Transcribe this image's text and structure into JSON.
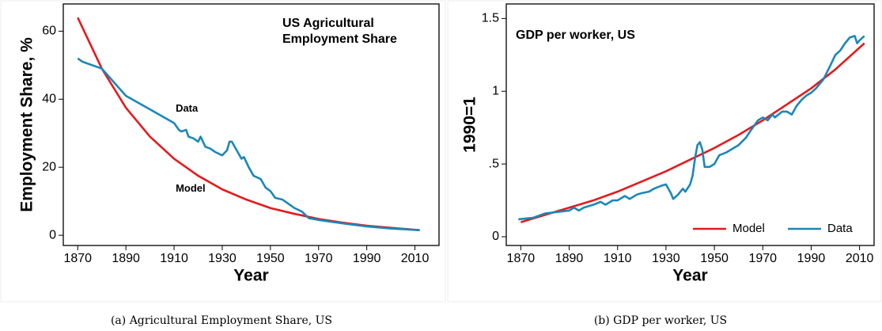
{
  "chart_data": [
    {
      "type": "line",
      "title": [
        "US Agricultural",
        "Employment Share"
      ],
      "caption": "(a) Agricultural Employment Share, US",
      "x_label": "Year",
      "y_label": "Employment Share, %",
      "xlim": [
        1864,
        2020
      ],
      "ylim": [
        -3,
        68
      ],
      "xticks": [
        1870,
        1890,
        1910,
        1930,
        1950,
        1970,
        1990,
        2010
      ],
      "yticks": [
        0,
        20,
        40,
        60
      ],
      "legend": "inline",
      "series": [
        {
          "name": "Model",
          "color": "#e41a1c",
          "x": [
            1870,
            1880,
            1890,
            1900,
            1910,
            1920,
            1930,
            1940,
            1950,
            1960,
            1970,
            1980,
            1990,
            2000,
            2012
          ],
          "values": [
            64,
            49,
            37.5,
            29,
            22.5,
            17.5,
            13.5,
            10.5,
            8,
            6.3,
            4.8,
            3.7,
            2.8,
            2.2,
            1.5
          ]
        },
        {
          "name": "Data",
          "color": "#1b87b8",
          "x": [
            1870,
            1872,
            1880,
            1890,
            1900,
            1910,
            1912,
            1913,
            1915,
            1916,
            1918,
            1920,
            1921,
            1923,
            1925,
            1927,
            1930,
            1932,
            1933,
            1934,
            1936,
            1938,
            1939,
            1941,
            1943,
            1946,
            1948,
            1950,
            1952,
            1955,
            1957,
            1960,
            1963,
            1966,
            1970,
            1975,
            1980,
            1990,
            2000,
            2012
          ],
          "values": [
            52,
            51,
            49,
            41,
            37,
            33,
            31,
            30.5,
            31,
            29,
            28.5,
            27.5,
            29,
            26,
            25.5,
            24.5,
            23.5,
            25,
            27.5,
            27.5,
            25,
            22.5,
            23,
            20,
            17.5,
            16.5,
            14,
            13,
            11,
            10.5,
            9.5,
            8,
            7,
            5,
            4.5,
            4,
            3.5,
            2.6,
            2,
            1.5
          ]
        }
      ]
    },
    {
      "type": "line",
      "title": [
        "GDP per worker, US"
      ],
      "caption": "(b) GDP per worker, US",
      "x_label": "Year",
      "y_label": "1990=1",
      "xlim": [
        1864,
        2016
      ],
      "ylim": [
        -0.06,
        1.6
      ],
      "xticks": [
        1870,
        1890,
        1910,
        1930,
        1950,
        1970,
        1990,
        2010
      ],
      "yticks": [
        0,
        {
          "value": 0.5,
          "label": ".5"
        },
        1,
        1.5
      ],
      "legend": "lower right",
      "series": [
        {
          "name": "Model",
          "color": "#e41a1c",
          "x": [
            1870,
            1880,
            1890,
            1900,
            1910,
            1920,
            1930,
            1940,
            1950,
            1960,
            1970,
            1980,
            1990,
            2000,
            2012
          ],
          "values": [
            0.1,
            0.15,
            0.2,
            0.25,
            0.31,
            0.38,
            0.45,
            0.53,
            0.61,
            0.7,
            0.8,
            0.91,
            1.02,
            1.15,
            1.33
          ]
        },
        {
          "name": "Data",
          "color": "#1b87b8",
          "x": [
            1869,
            1875,
            1880,
            1885,
            1890,
            1892,
            1894,
            1896,
            1900,
            1903,
            1905,
            1908,
            1910,
            1913,
            1915,
            1918,
            1920,
            1923,
            1925,
            1928,
            1930,
            1932,
            1933,
            1935,
            1937,
            1938,
            1940,
            1941,
            1942,
            1943,
            1944,
            1945,
            1946,
            1948,
            1950,
            1952,
            1955,
            1957,
            1960,
            1963,
            1965,
            1968,
            1970,
            1972,
            1974,
            1975,
            1978,
            1980,
            1982,
            1984,
            1986,
            1988,
            1990,
            1992,
            1995,
            1998,
            2000,
            2002,
            2004,
            2006,
            2008,
            2009,
            2010,
            2012
          ],
          "values": [
            0.12,
            0.13,
            0.16,
            0.17,
            0.18,
            0.2,
            0.18,
            0.2,
            0.22,
            0.24,
            0.22,
            0.25,
            0.25,
            0.28,
            0.26,
            0.29,
            0.3,
            0.31,
            0.33,
            0.35,
            0.36,
            0.3,
            0.26,
            0.29,
            0.33,
            0.31,
            0.36,
            0.42,
            0.54,
            0.63,
            0.65,
            0.6,
            0.48,
            0.48,
            0.5,
            0.56,
            0.58,
            0.6,
            0.63,
            0.68,
            0.73,
            0.8,
            0.82,
            0.8,
            0.84,
            0.82,
            0.86,
            0.86,
            0.84,
            0.9,
            0.94,
            0.97,
            0.99,
            1.02,
            1.08,
            1.18,
            1.25,
            1.28,
            1.33,
            1.37,
            1.38,
            1.33,
            1.35,
            1.38
          ]
        }
      ]
    }
  ]
}
